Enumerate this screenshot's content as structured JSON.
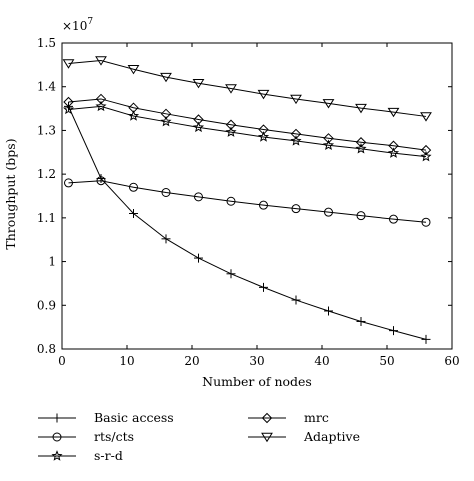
{
  "chart_data": {
    "type": "line",
    "title": "",
    "xlabel": "Number of nodes",
    "ylabel": "Throughput (bps)",
    "y_multiplier_label": "×10",
    "y_multiplier_exponent": "7",
    "xlim": [
      0,
      60
    ],
    "ylim": [
      0.8,
      1.5
    ],
    "x_ticks": [
      0,
      10,
      20,
      30,
      40,
      50,
      60
    ],
    "x_tick_labels": [
      "0",
      "10",
      "20",
      "30",
      "40",
      "50",
      "60"
    ],
    "y_ticks": [
      0.8,
      0.9,
      1.0,
      1.1,
      1.2,
      1.3,
      1.4,
      1.5
    ],
    "y_tick_labels": [
      "0.8",
      "0.9",
      "1",
      "1.1",
      "1.2",
      "1.3",
      "1.4",
      "1.5"
    ],
    "grid": false,
    "legend_position": "bottom",
    "x": [
      1,
      6,
      11,
      16,
      21,
      26,
      31,
      36,
      41,
      46,
      51,
      56
    ],
    "series": [
      {
        "name": "Basic access",
        "marker": "plus",
        "values": [
          1.355,
          1.19,
          1.11,
          1.052,
          1.008,
          0.972,
          0.941,
          0.912,
          0.887,
          0.863,
          0.842,
          0.822
        ]
      },
      {
        "name": "rts/cts",
        "marker": "circle",
        "values": [
          1.18,
          1.185,
          1.17,
          1.158,
          1.148,
          1.138,
          1.129,
          1.121,
          1.113,
          1.105,
          1.097,
          1.09
        ]
      },
      {
        "name": "s-r-d",
        "marker": "star",
        "values": [
          1.348,
          1.355,
          1.333,
          1.32,
          1.307,
          1.296,
          1.285,
          1.276,
          1.266,
          1.258,
          1.248,
          1.24
        ]
      },
      {
        "name": "mrc",
        "marker": "diamond",
        "values": [
          1.365,
          1.372,
          1.352,
          1.338,
          1.325,
          1.313,
          1.302,
          1.292,
          1.282,
          1.273,
          1.265,
          1.255
        ]
      },
      {
        "name": "Adaptive",
        "marker": "triangle-down",
        "values": [
          1.453,
          1.46,
          1.44,
          1.422,
          1.408,
          1.396,
          1.383,
          1.372,
          1.362,
          1.351,
          1.342,
          1.332
        ]
      }
    ]
  }
}
